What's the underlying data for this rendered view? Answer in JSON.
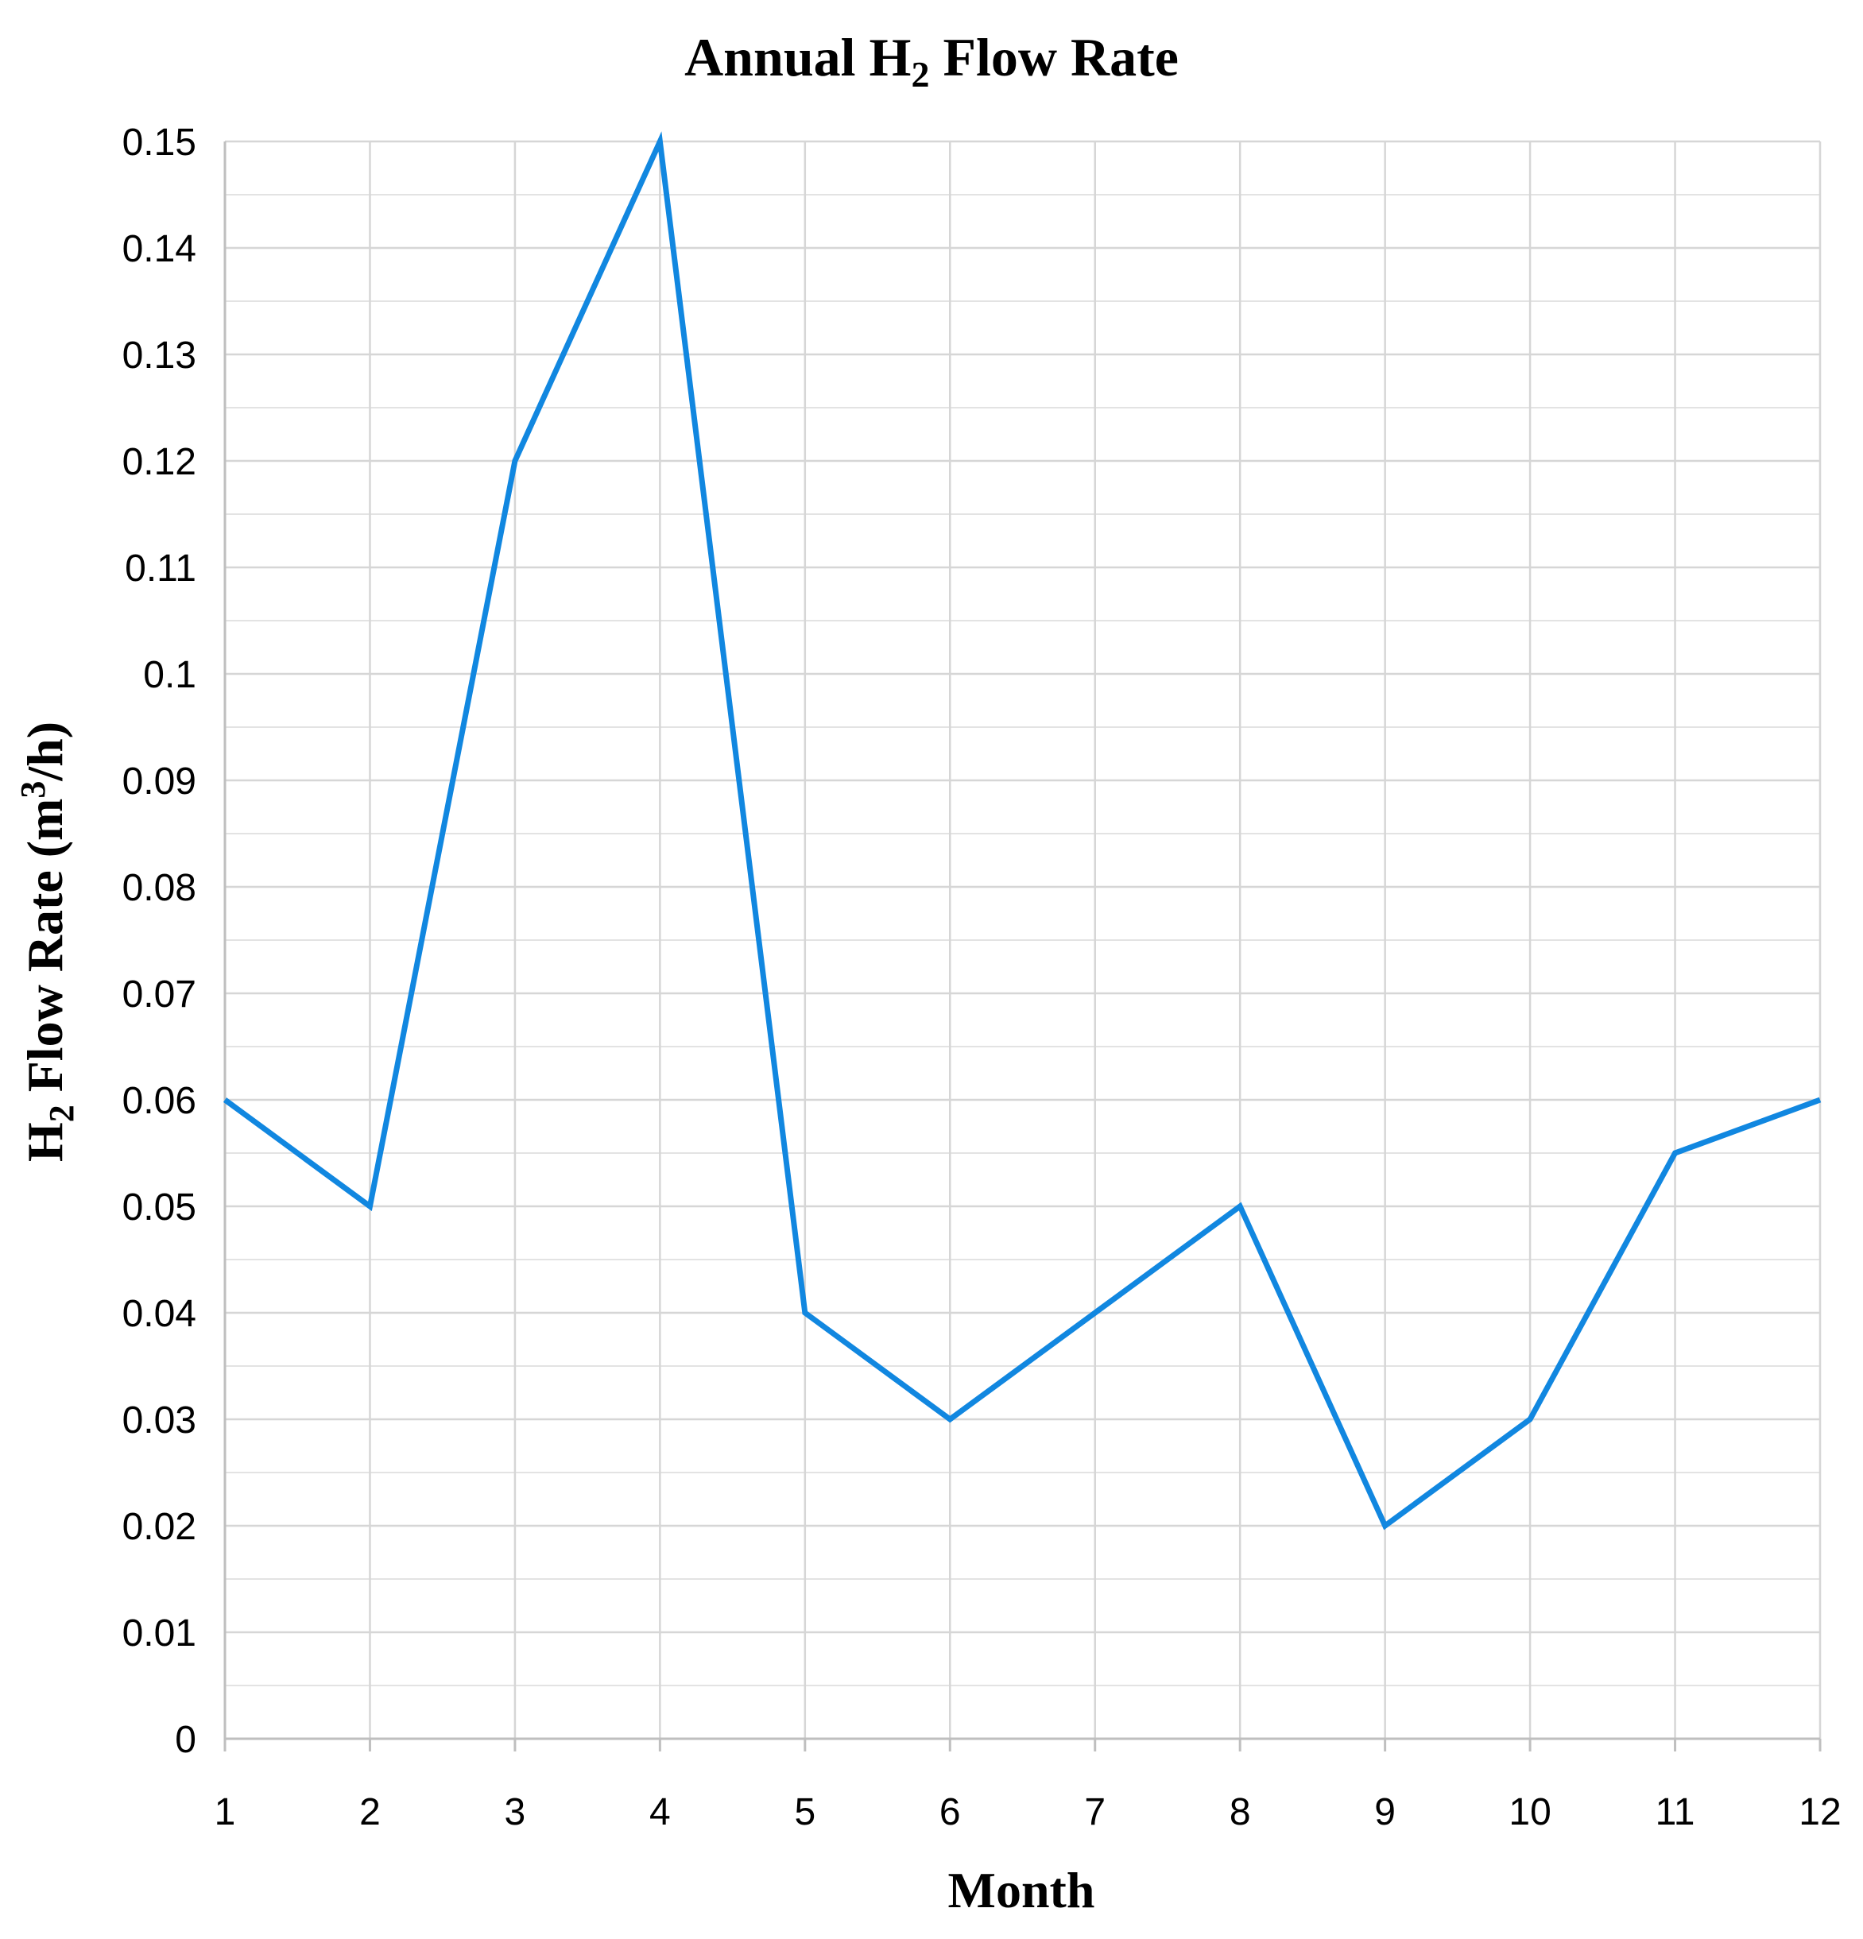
{
  "chart_data": {
    "type": "line",
    "title": {
      "prefix": "Annual H",
      "sub": "2",
      "suffix": " Flow Rate"
    },
    "xlabel": "Month",
    "ylabel": {
      "prefix": "H",
      "sub": "2",
      "middle": " Flow Rate (m",
      "sup": "3",
      "suffix": "/h)"
    },
    "x": [
      1,
      2,
      3,
      4,
      5,
      6,
      7,
      8,
      9,
      10,
      11,
      12
    ],
    "x_tick_labels": [
      "1",
      "2",
      "3",
      "4",
      "5",
      "6",
      "7",
      "8",
      "9",
      "10",
      "11",
      "12"
    ],
    "xlim": [
      1,
      12
    ],
    "ylim": [
      0,
      0.15
    ],
    "y_ticks": [
      0,
      0.01,
      0.02,
      0.03,
      0.04,
      0.05,
      0.06,
      0.07,
      0.08,
      0.09,
      0.1,
      0.11,
      0.12,
      0.13,
      0.14,
      0.15
    ],
    "y_tick_labels": [
      "0",
      "0.01",
      "0.02",
      "0.03",
      "0.04",
      "0.05",
      "0.06",
      "0.07",
      "0.08",
      "0.09",
      "0.1",
      "0.11",
      "0.12",
      "0.13",
      "0.14",
      "0.15"
    ],
    "y_minor_ticks": [
      0.005,
      0.015,
      0.025,
      0.035,
      0.045,
      0.055,
      0.065,
      0.075,
      0.085,
      0.095,
      0.105,
      0.115,
      0.125,
      0.135,
      0.145
    ],
    "grid": true,
    "legend": "none",
    "series": [
      {
        "color": "#1187E0",
        "values": [
          0.06,
          0.05,
          0.12,
          0.15,
          0.04,
          0.03,
          0.04,
          0.05,
          0.02,
          0.03,
          0.055,
          0.06
        ]
      }
    ]
  }
}
